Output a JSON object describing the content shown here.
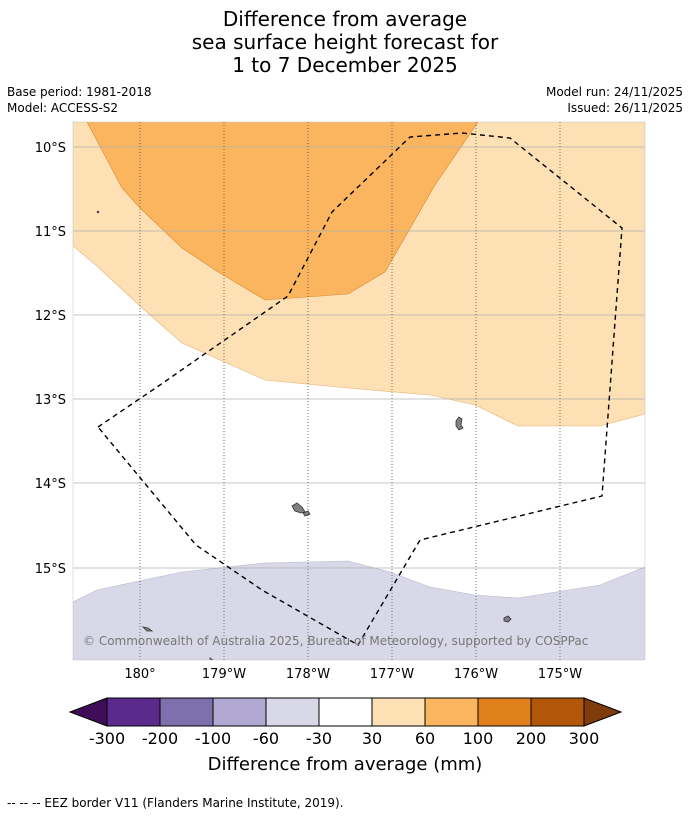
{
  "title": {
    "line1": "Difference from average",
    "line2": "sea surface height forecast for",
    "line3": "1 to 7 December 2025"
  },
  "meta": {
    "base_period": "Base period: 1981-2018",
    "model": "Model: ACCESS-S2",
    "model_run": "Model run: 24/11/2025",
    "issued": "Issued: 26/11/2025"
  },
  "map": {
    "lat_labels": [
      "10°S",
      "11°S",
      "12°S",
      "13°S",
      "14°S",
      "15°S"
    ],
    "lon_labels": [
      "180°",
      "179°W",
      "178°W",
      "177°W",
      "176°W",
      "175°W"
    ],
    "credit": "© Commonwealth of Australia 2025, Bureau of Meteorology, supported by COSPPac",
    "colors": {
      "anomaly_30_60": "#fde0b4",
      "anomaly_60_100": "#fbb55e",
      "anomaly_neg60_neg30": "#d8d8e8",
      "land": "#808080",
      "eez_border": "#000000"
    }
  },
  "colorbar": {
    "ticks": [
      "-300",
      "-200",
      "-100",
      "-60",
      "-30",
      "30",
      "60",
      "100",
      "200",
      "300"
    ],
    "colors": [
      "#3f0d57",
      "#5c2a8c",
      "#7e70ac",
      "#b1a9d1",
      "#d8d8e8",
      "#ffffff",
      "#fde0b4",
      "#fbb55e",
      "#e0811b",
      "#b25709",
      "#7f3c0a"
    ],
    "label": "Difference from average (mm)"
  },
  "footer": "--  --  -- EEZ border V11 (Flanders Marine Institute, 2019)."
}
